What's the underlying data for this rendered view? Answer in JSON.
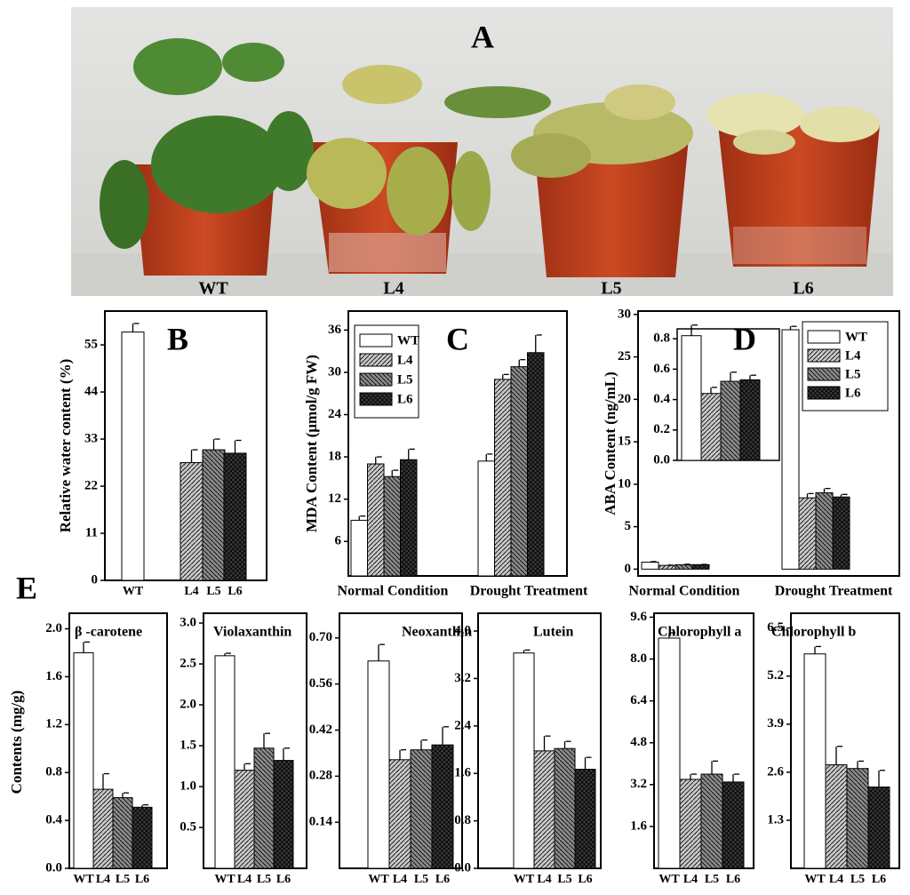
{
  "photo": {
    "label": "A",
    "captions": [
      "WT",
      "L4",
      "L5",
      "L6"
    ]
  },
  "chart_data": [
    {
      "type": "bar",
      "label": "B",
      "y_label": "Relative water content (%)",
      "categories": [
        "WT",
        "L4",
        "L5",
        "L6"
      ],
      "values": [
        58,
        27.5,
        30.5,
        29.7
      ],
      "errors": [
        2,
        3,
        2.5,
        3
      ],
      "colors": [
        "#ffffff",
        "#c8c8c8",
        "#8a8a8a",
        "#3a3a3a"
      ],
      "ylim": [
        0,
        62.9
      ],
      "yticks": [
        0,
        11,
        22,
        33,
        44,
        55
      ]
    },
    {
      "type": "grouped_bar",
      "label": "C",
      "y_label": "MDA Content (μmol/g FW)",
      "categories": [
        "Normal Condition",
        "Drought Treatment"
      ],
      "series": [
        {
          "name": "WT",
          "color": "#ffffff",
          "values": [
            9,
            17.4
          ],
          "errors": [
            0.6,
            1
          ]
        },
        {
          "name": "L4",
          "color": "#c8c8c8",
          "values": [
            17,
            29
          ],
          "errors": [
            1,
            0.7
          ]
        },
        {
          "name": "L5",
          "color": "#8a8a8a",
          "values": [
            15.2,
            30.8
          ],
          "errors": [
            0.9,
            1
          ]
        },
        {
          "name": "L6",
          "color": "#3a3a3a",
          "values": [
            17.6,
            32.8
          ],
          "errors": [
            1.5,
            2.5
          ]
        }
      ],
      "ylim": [
        1.1,
        38.7
      ],
      "yticks": [
        6,
        12,
        18,
        24,
        30,
        36
      ],
      "legend": "upper left"
    },
    {
      "type": "grouped_bar",
      "label": "D",
      "y_label": "ABA Content (ng/mL)",
      "categories": [
        "Normal Condition",
        "Drought Treatment"
      ],
      "series": [
        {
          "name": "WT",
          "color": "#ffffff",
          "values": [
            0.82,
            28.2
          ],
          "errors": [
            0.07,
            0.4
          ]
        },
        {
          "name": "L4",
          "color": "#c8c8c8",
          "values": [
            0.44,
            8.4
          ],
          "errors": [
            0.04,
            0.5
          ]
        },
        {
          "name": "L5",
          "color": "#8a8a8a",
          "values": [
            0.52,
            9.0
          ],
          "errors": [
            0.06,
            0.5
          ]
        },
        {
          "name": "L6",
          "color": "#3a3a3a",
          "values": [
            0.53,
            8.5
          ],
          "errors": [
            0.03,
            0.3
          ]
        }
      ],
      "ylim": [
        -0.8,
        30.4
      ],
      "yticks": [
        0,
        5,
        10,
        15,
        20,
        25,
        30
      ],
      "legend": "upper right",
      "inset": {
        "ylim": [
          0,
          0.865
        ],
        "yticks": [
          {
            "value": 0,
            "label": "0.0"
          },
          0.2,
          0.4,
          0.6,
          0.8
        ]
      }
    },
    {
      "type": "bar",
      "label": "E",
      "y_label": "Contents (mg/g)",
      "title": "β -carotene",
      "categories": [
        "WT",
        "L4",
        "L5",
        "L6"
      ],
      "values": [
        1.8,
        0.66,
        0.59,
        0.51
      ],
      "errors": [
        0.09,
        0.13,
        0.04,
        0.02
      ],
      "colors": [
        "#ffffff",
        "#c8c8c8",
        "#8a8a8a",
        "#3a3a3a"
      ],
      "ylim": [
        0,
        2.13
      ],
      "yticks": [
        {
          "value": 0,
          "label": "0.0"
        },
        0.4,
        0.8,
        1.2,
        1.6,
        {
          "value": 2,
          "label": "2.0"
        }
      ]
    },
    {
      "type": "bar",
      "title": "Violaxanthin",
      "categories": [
        "WT",
        "L4",
        "L5",
        "L6"
      ],
      "values": [
        2.6,
        1.2,
        1.47,
        1.32
      ],
      "errors": [
        0.03,
        0.08,
        0.18,
        0.15
      ],
      "colors": [
        "#ffffff",
        "#c8c8c8",
        "#8a8a8a",
        "#3a3a3a"
      ],
      "ylim": [
        0,
        3.12
      ],
      "yticks": [
        0.5,
        {
          "value": 1,
          "label": "1.0"
        },
        1.5,
        {
          "value": 2,
          "label": "2.0"
        },
        2.5,
        {
          "value": 3,
          "label": "3.0"
        }
      ]
    },
    {
      "type": "bar",
      "title": "Neoxanthin",
      "categories": [
        "WT",
        "L4",
        "L5",
        "L6"
      ],
      "values": [
        0.63,
        0.33,
        0.36,
        0.375
      ],
      "errors": [
        0.05,
        0.03,
        0.03,
        0.055
      ],
      "colors": [
        "#ffffff",
        "#c8c8c8",
        "#8a8a8a",
        "#3a3a3a"
      ],
      "ylim": [
        0,
        0.775
      ],
      "yticks": [
        0.14,
        0.28,
        0.42,
        0.56,
        {
          "value": 0.7,
          "label": "0.70"
        }
      ]
    },
    {
      "type": "bar",
      "title": "Lutein",
      "categories": [
        "WT",
        "L4",
        "L5",
        "L6"
      ],
      "values": [
        3.63,
        1.98,
        2.02,
        1.67
      ],
      "errors": [
        0.05,
        0.25,
        0.12,
        0.2
      ],
      "colors": [
        "#ffffff",
        "#c8c8c8",
        "#8a8a8a",
        "#3a3a3a"
      ],
      "ylim": [
        0,
        4.3
      ],
      "yticks": [
        {
          "value": 0,
          "label": "0.0"
        },
        0.8,
        1.6,
        2.4,
        3.2,
        {
          "value": 4,
          "label": "4.0"
        }
      ]
    },
    {
      "type": "bar",
      "title": "Chlorophyll a",
      "categories": [
        "WT",
        "L4",
        "L5",
        "L6"
      ],
      "values": [
        8.8,
        3.4,
        3.6,
        3.3
      ],
      "errors": [
        0.2,
        0.2,
        0.5,
        0.3
      ],
      "colors": [
        "#ffffff",
        "#c8c8c8",
        "#8a8a8a",
        "#3a3a3a"
      ],
      "ylim": [
        0,
        9.75
      ],
      "yticks": [
        1.6,
        3.2,
        4.8,
        6.4,
        {
          "value": 8,
          "label": "8.0"
        },
        9.6
      ]
    },
    {
      "type": "bar",
      "title": "Chlorophyll b",
      "categories": [
        "WT",
        "L4",
        "L5",
        "L6"
      ],
      "values": [
        5.8,
        2.8,
        2.7,
        2.2
      ],
      "errors": [
        0.2,
        0.5,
        0.2,
        0.45
      ],
      "colors": [
        "#ffffff",
        "#c8c8c8",
        "#8a8a8a",
        "#3a3a3a"
      ],
      "ylim": [
        0,
        6.9
      ],
      "yticks": [
        1.3,
        2.6,
        3.9,
        5.2,
        6.5
      ]
    }
  ]
}
